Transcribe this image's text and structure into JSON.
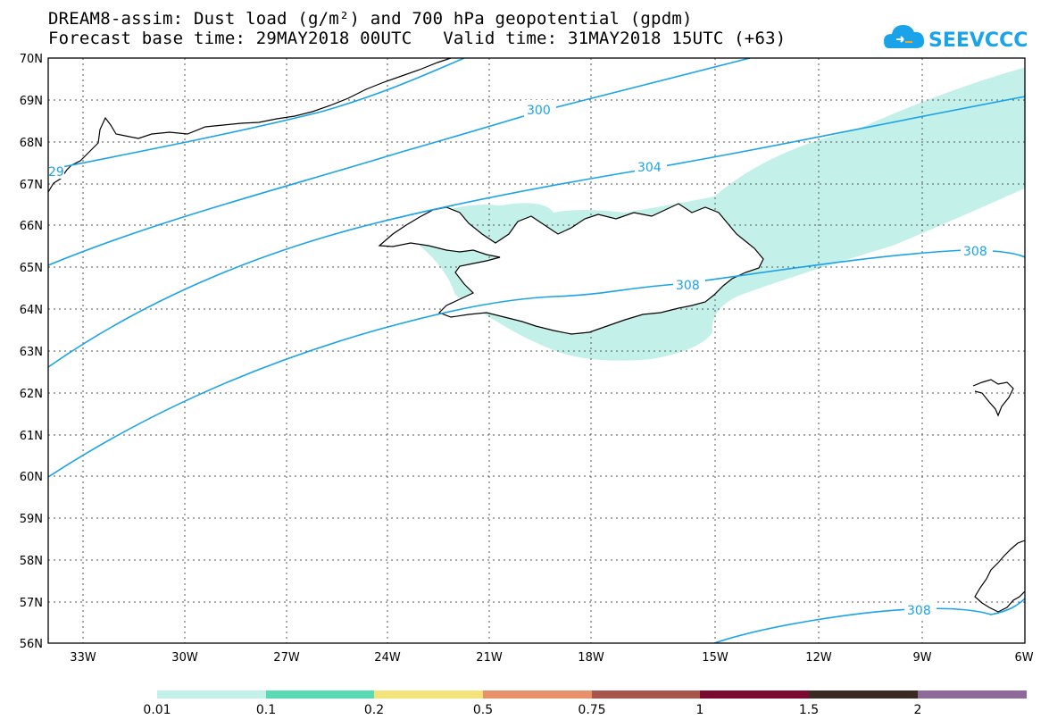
{
  "header": {
    "title_line1": "DREAM8-assim: Dust load (g/m²) and 700 hPa geopotential (gpdm)",
    "title_line2": "Forecast base time: 29MAY2018 00UTC   Valid time: 31MAY2018 15UTC (+63)",
    "logo_text": "SEEVCCC"
  },
  "map": {
    "lat_labels": [
      "70N",
      "69N",
      "68N",
      "67N",
      "66N",
      "65N",
      "64N",
      "63N",
      "62N",
      "61N",
      "60N",
      "59N",
      "58N",
      "57N",
      "56N"
    ],
    "lon_labels": [
      "33W",
      "30W",
      "27W",
      "24W",
      "21W",
      "18W",
      "15W",
      "12W",
      "9W",
      "6W"
    ],
    "contour_color": "#1aa3e8",
    "contour_labels": [
      "300",
      "304",
      "308",
      "308",
      "308",
      "29"
    ],
    "dust_colors": {
      "low": "#c4f0ea",
      "mid": "#5ad9b5"
    }
  },
  "legend": {
    "colors": [
      "#c4f0ea",
      "#5ad9b5",
      "#f4e27a",
      "#e8906a",
      "#a8564c",
      "#7a0a30",
      "#3b2a22",
      "#8e6a9a"
    ],
    "labels": [
      "0.01",
      "0.1",
      "0.2",
      "0.5",
      "0.75",
      "1",
      "1.5",
      "2"
    ]
  }
}
